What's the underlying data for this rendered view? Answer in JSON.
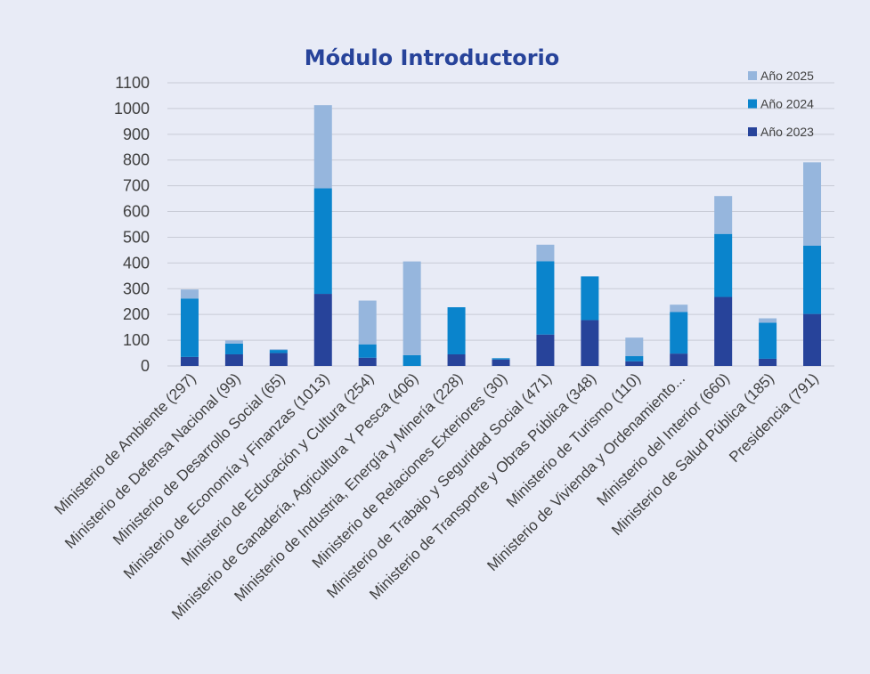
{
  "chart_data": {
    "type": "bar",
    "stacked": true,
    "title": "Módulo Introductorio",
    "xlabel": "",
    "ylabel": "",
    "ylim": [
      0,
      1100
    ],
    "yticks": [
      0,
      100,
      200,
      300,
      400,
      500,
      600,
      700,
      800,
      900,
      1000,
      1100
    ],
    "grid": true,
    "legend_position": "top-right",
    "categories": [
      "Ministerio de Ambiente (297)",
      "Ministerio de Defensa Nacional (99)",
      "Ministerio de Desarrollo Social (65)",
      "Ministerio de Economía y Finanzas (1013)",
      "Ministerio de Educación y Cultura (254)",
      "Ministerio de Ganadería, Agricultura Y Pesca (406)",
      "Ministerio de Industria, Energía y Minería (228)",
      "Ministerio de Relaciones Exteriores (30)",
      "Ministerio de Trabajo y Seguridad Social (471)",
      "Ministerio de Transporte y Obras Pública (348)",
      "Ministerio de Turismo (110)",
      "Ministerio de Vivienda y Ordenamiento...",
      "Ministerio del Interior (660)",
      "Ministerio de Salud Pública (185)",
      "Presidencia (791)"
    ],
    "series": [
      {
        "name": "Año 2023",
        "color": "#27439a",
        "values": [
          35,
          45,
          50,
          280,
          32,
          0,
          45,
          25,
          122,
          178,
          18,
          48,
          268,
          28,
          202
        ]
      },
      {
        "name": "Año 2024",
        "color": "#0a84cc",
        "values": [
          227,
          42,
          12,
          410,
          52,
          42,
          183,
          5,
          285,
          170,
          20,
          162,
          245,
          140,
          265
        ]
      },
      {
        "name": "Año 2025",
        "color": "#96b6dd",
        "values": [
          35,
          12,
          3,
          323,
          170,
          364,
          0,
          0,
          64,
          0,
          72,
          28,
          147,
          17,
          324
        ]
      }
    ]
  }
}
